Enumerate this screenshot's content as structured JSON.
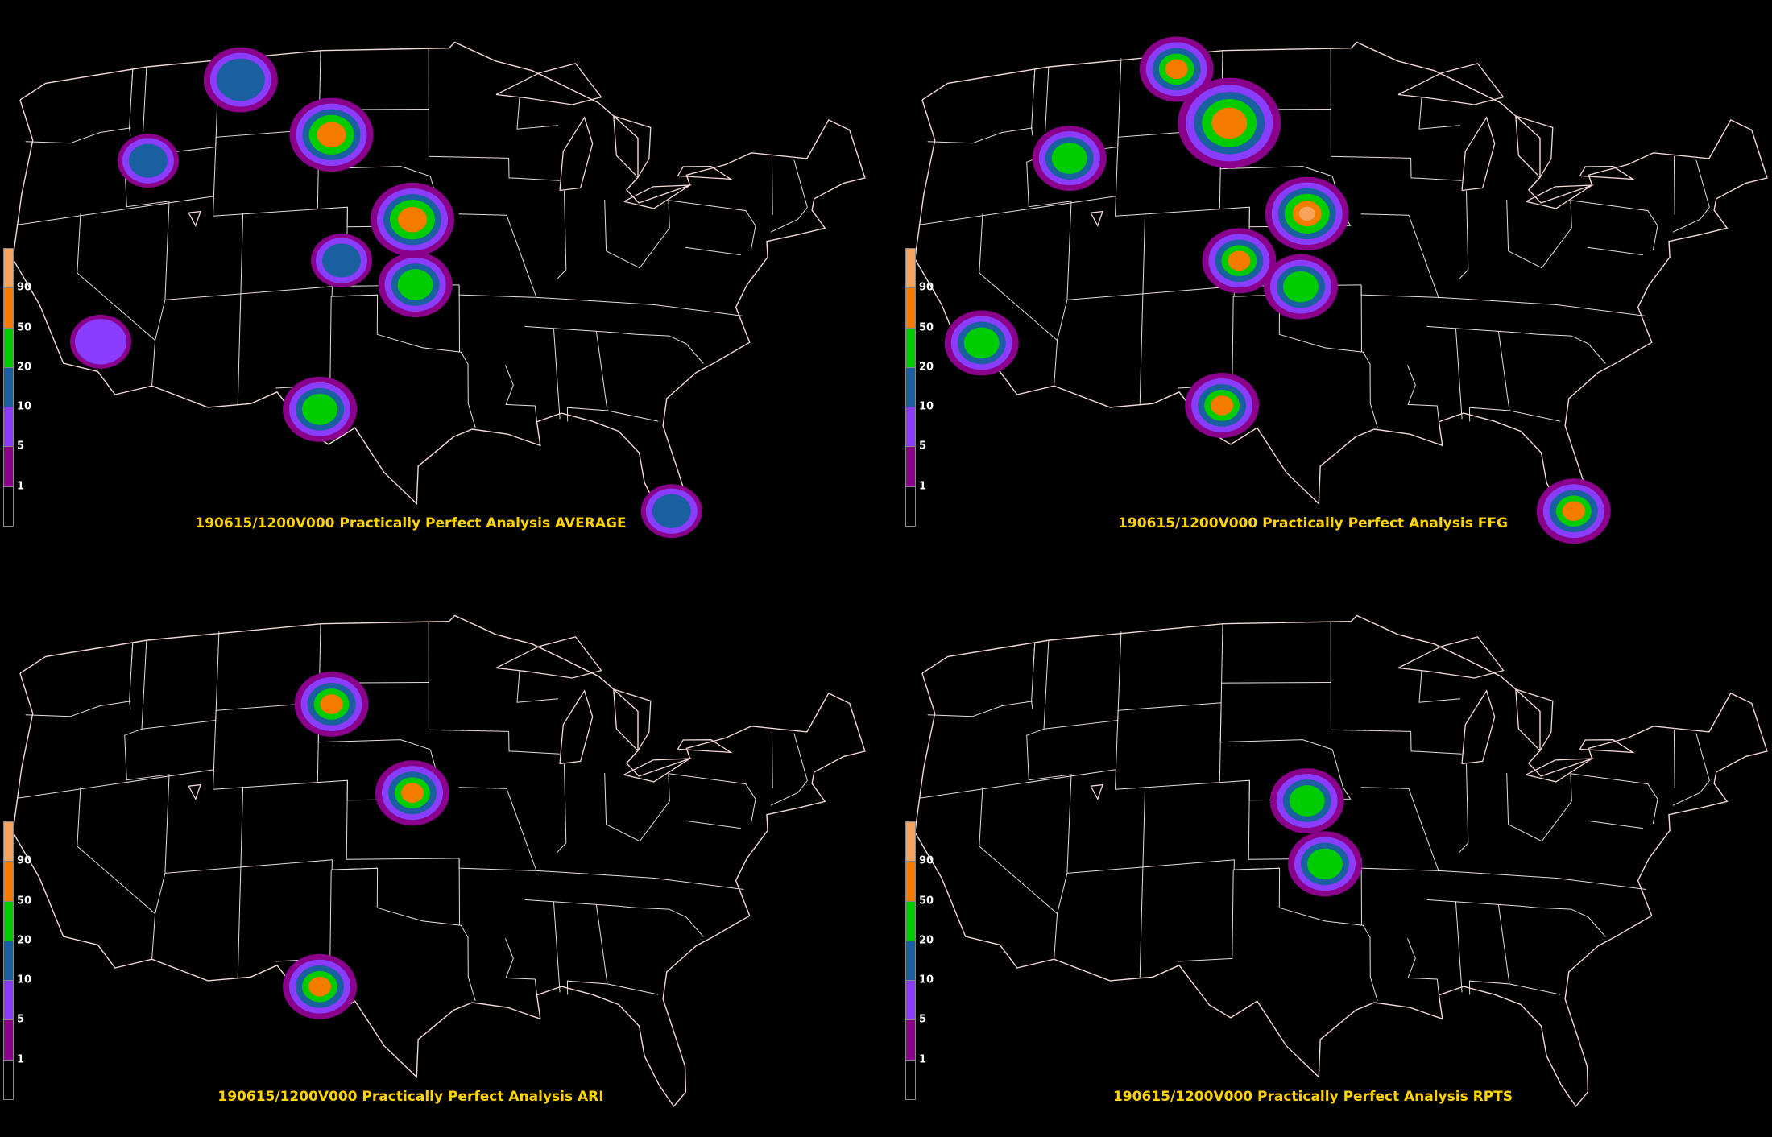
{
  "legend": {
    "ticks": [
      "90",
      "50",
      "20",
      "10",
      "5",
      "1"
    ],
    "colors": [
      "#f7a35c",
      "#f57c00",
      "#00cc00",
      "#1a5fa0",
      "#8a3dff",
      "#8b008b",
      "#000000"
    ]
  },
  "panels": [
    {
      "caption": "190615/1200V000 Practically Perfect Analysis AVERAGE",
      "blobs": [
        {
          "lon": -109.5,
          "lat": 47.8,
          "level": 3,
          "size": "md"
        },
        {
          "lon": -115.6,
          "lat": 44.2,
          "level": 3,
          "size": "sm"
        },
        {
          "lon": -103.2,
          "lat": 44.7,
          "level": 5,
          "size": "lg"
        },
        {
          "lon": -97.7,
          "lat": 40.3,
          "level": 5,
          "size": "lg"
        },
        {
          "lon": -102.4,
          "lat": 38.3,
          "level": 3,
          "size": "sm"
        },
        {
          "lon": -97.5,
          "lat": 37.0,
          "level": 4,
          "size": "md"
        },
        {
          "lon": -118.2,
          "lat": 35.3,
          "level": 2,
          "size": "sm"
        },
        {
          "lon": -103.7,
          "lat": 30.8,
          "level": 4,
          "size": "md"
        },
        {
          "lon": -81.0,
          "lat": 26.2,
          "level": 3,
          "size": "sm"
        }
      ]
    },
    {
      "caption": "190615/1200V000 Practically Perfect Analysis FFG",
      "blobs": [
        {
          "lon": -107.2,
          "lat": 48.2,
          "level": 5,
          "size": "md"
        },
        {
          "lon": -103.5,
          "lat": 45.3,
          "level": 5,
          "size": "xl"
        },
        {
          "lon": -114.3,
          "lat": 44.2,
          "level": 4,
          "size": "md"
        },
        {
          "lon": -98.2,
          "lat": 40.6,
          "level": 6,
          "size": "lg"
        },
        {
          "lon": -102.7,
          "lat": 38.3,
          "level": 5,
          "size": "md"
        },
        {
          "lon": -98.6,
          "lat": 36.9,
          "level": 4,
          "size": "md"
        },
        {
          "lon": -119.6,
          "lat": 35.4,
          "level": 4,
          "size": "md"
        },
        {
          "lon": -103.7,
          "lat": 31.0,
          "level": 5,
          "size": "md"
        },
        {
          "lon": -81.0,
          "lat": 26.2,
          "level": 5,
          "size": "md"
        }
      ]
    },
    {
      "caption": "190615/1200V000 Practically Perfect Analysis ARI",
      "blobs": [
        {
          "lon": -103.2,
          "lat": 44.9,
          "level": 5,
          "size": "md"
        },
        {
          "lon": -97.7,
          "lat": 40.3,
          "level": 5,
          "size": "md"
        },
        {
          "lon": -103.7,
          "lat": 30.6,
          "level": 5,
          "size": "md"
        }
      ]
    },
    {
      "caption": "190615/1200V000 Practically Perfect Analysis RPTS",
      "blobs": [
        {
          "lon": -98.2,
          "lat": 39.9,
          "level": 4,
          "size": "md"
        },
        {
          "lon": -97.0,
          "lat": 36.7,
          "level": 4,
          "size": "md"
        }
      ]
    }
  ]
}
